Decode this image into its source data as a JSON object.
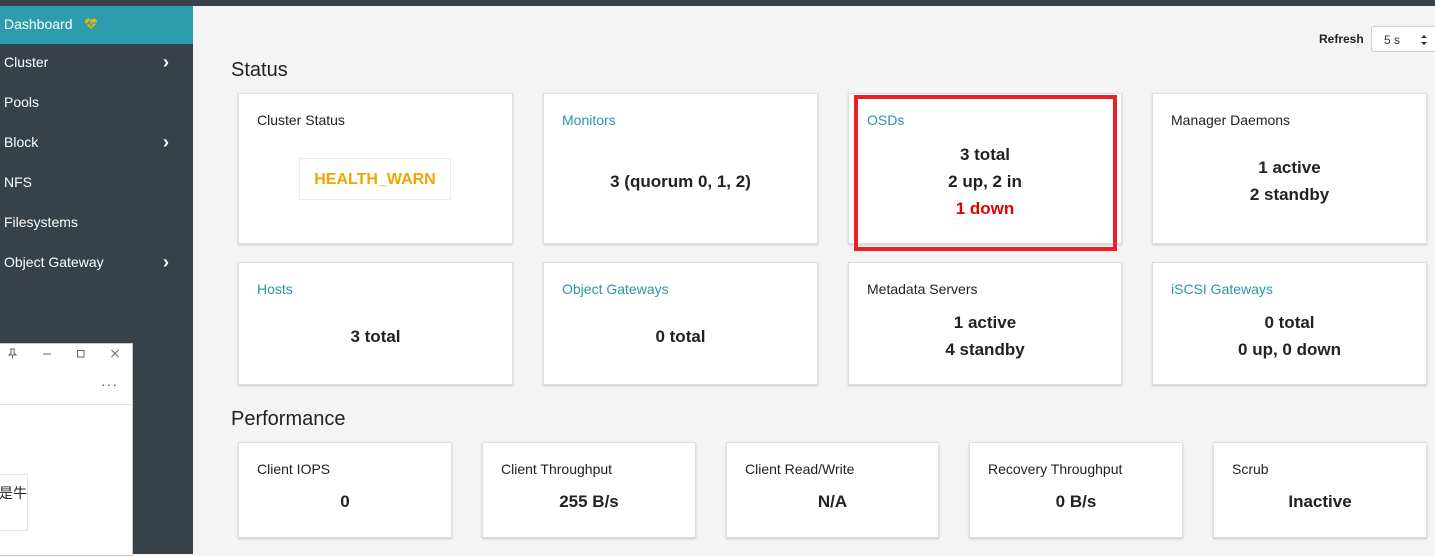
{
  "sidebar": {
    "items": [
      {
        "label": "Dashboard",
        "active": true,
        "icon": "heartbeat-icon"
      },
      {
        "label": "Cluster",
        "chevron": true
      },
      {
        "label": "Pools"
      },
      {
        "label": "Block",
        "chevron": true
      },
      {
        "label": "NFS"
      },
      {
        "label": "Filesystems"
      },
      {
        "label": "Object Gateway",
        "chevron": true
      }
    ]
  },
  "popup": {
    "buttons": [
      "pin-icon",
      "minimize-icon",
      "maximize-icon",
      "close-icon"
    ],
    "more_label": "···",
    "card_text": "是牛"
  },
  "refresh": {
    "label": "Refresh",
    "value": "5 s"
  },
  "status": {
    "title": "Status",
    "cluster_status": {
      "title": "Cluster Status",
      "value": "HEALTH_WARN"
    },
    "monitors": {
      "title": "Monitors",
      "value": "3 (quorum 0, 1, 2)"
    },
    "osds": {
      "title": "OSDs",
      "total": "3 total",
      "updown": "2 up, 2 in",
      "down": "1 down"
    },
    "managers": {
      "title": "Manager Daemons",
      "active": "1 active",
      "standby": "2 standby"
    },
    "hosts": {
      "title": "Hosts",
      "value": "3 total"
    },
    "object_gateways": {
      "title": "Object Gateways",
      "value": "0 total"
    },
    "metadata_servers": {
      "title": "Metadata Servers",
      "active": "1 active",
      "standby": "4 standby"
    },
    "iscsi_gateways": {
      "title": "iSCSI Gateways",
      "total": "0 total",
      "updown": "0 up, 0 down"
    }
  },
  "performance": {
    "title": "Performance",
    "client_iops": {
      "title": "Client IOPS",
      "value": "0"
    },
    "client_throughput": {
      "title": "Client Throughput",
      "value": "255 B/s"
    },
    "client_rw": {
      "title": "Client Read/Write",
      "value": "N/A"
    },
    "recovery_throughput": {
      "title": "Recovery Throughput",
      "value": "0 B/s"
    },
    "scrub": {
      "title": "Scrub",
      "value": "Inactive"
    }
  },
  "colors": {
    "sidebar_bg": "#374149",
    "active_nav": "#2d9dad",
    "link": "#2b95a8",
    "warn": "#f0a500",
    "error": "#e30000",
    "highlight": "#ec1f25"
  }
}
